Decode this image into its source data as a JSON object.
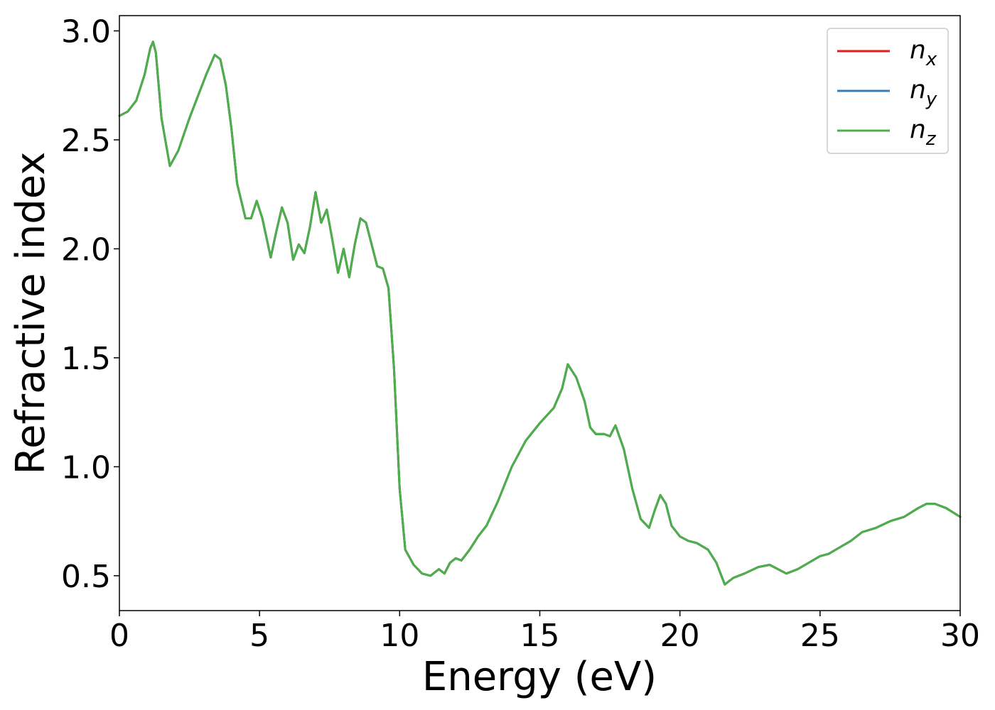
{
  "chart_data": {
    "type": "line",
    "title": "",
    "xlabel": "Energy (eV)",
    "ylabel": "Refractive index",
    "xlim": [
      0,
      30
    ],
    "ylim": [
      0.34,
      3.07
    ],
    "xticks": [
      0,
      5,
      10,
      15,
      20,
      25,
      30
    ],
    "xtick_labels": [
      "0",
      "5",
      "10",
      "15",
      "20",
      "25",
      "30"
    ],
    "yticks": [
      0.5,
      1.0,
      1.5,
      2.0,
      2.5,
      3.0
    ],
    "ytick_labels": [
      "0.5",
      "1.0",
      "1.5",
      "2.0",
      "2.5",
      "3.0"
    ],
    "grid": false,
    "legend": {
      "placement": "top-right"
    },
    "colors": {
      "nx": "#e41a1c",
      "ny": "#377eb8",
      "nz": "#4daf4a"
    },
    "x": [
      0,
      0.3,
      0.6,
      0.9,
      1.1,
      1.2,
      1.3,
      1.5,
      1.8,
      2.1,
      2.5,
      2.8,
      3.1,
      3.4,
      3.6,
      3.8,
      4.0,
      4.2,
      4.5,
      4.7,
      4.9,
      5.1,
      5.4,
      5.6,
      5.8,
      6.0,
      6.2,
      6.4,
      6.6,
      6.8,
      7.0,
      7.2,
      7.4,
      7.6,
      7.8,
      8.0,
      8.2,
      8.4,
      8.6,
      8.8,
      9.0,
      9.2,
      9.4,
      9.6,
      9.8,
      10.0,
      10.2,
      10.5,
      10.8,
      11.1,
      11.4,
      11.6,
      11.8,
      12.0,
      12.2,
      12.5,
      12.8,
      13.1,
      13.5,
      14.0,
      14.5,
      15.0,
      15.5,
      15.8,
      16.0,
      16.3,
      16.6,
      16.8,
      17.0,
      17.3,
      17.5,
      17.7,
      18.0,
      18.3,
      18.6,
      18.9,
      19.1,
      19.3,
      19.5,
      19.7,
      20.0,
      20.3,
      20.6,
      21.0,
      21.3,
      21.6,
      21.9,
      22.3,
      22.8,
      23.2,
      23.5,
      23.8,
      24.2,
      24.6,
      25.0,
      25.3,
      25.7,
      26.1,
      26.5,
      27.0,
      27.5,
      28.0,
      28.5,
      28.8,
      29.1,
      29.5,
      30.0
    ],
    "series": [
      {
        "name": "n_x",
        "label_base": "n",
        "label_sub": "x",
        "color": "#e41a1c",
        "values": [
          2.61,
          2.63,
          2.68,
          2.8,
          2.92,
          2.95,
          2.9,
          2.6,
          2.38,
          2.45,
          2.6,
          2.7,
          2.8,
          2.89,
          2.87,
          2.75,
          2.55,
          2.3,
          2.14,
          2.14,
          2.22,
          2.14,
          1.96,
          2.08,
          2.19,
          2.12,
          1.95,
          2.02,
          1.98,
          2.1,
          2.26,
          2.12,
          2.18,
          2.04,
          1.89,
          2.0,
          1.87,
          2.02,
          2.14,
          2.12,
          2.02,
          1.92,
          1.91,
          1.82,
          1.45,
          0.9,
          0.62,
          0.55,
          0.51,
          0.5,
          0.53,
          0.51,
          0.56,
          0.58,
          0.57,
          0.62,
          0.68,
          0.73,
          0.84,
          1.0,
          1.12,
          1.2,
          1.27,
          1.36,
          1.47,
          1.41,
          1.3,
          1.18,
          1.15,
          1.15,
          1.14,
          1.19,
          1.08,
          0.9,
          0.76,
          0.72,
          0.8,
          0.87,
          0.83,
          0.73,
          0.68,
          0.66,
          0.65,
          0.62,
          0.56,
          0.46,
          0.49,
          0.51,
          0.54,
          0.55,
          0.53,
          0.51,
          0.53,
          0.56,
          0.59,
          0.6,
          0.63,
          0.66,
          0.7,
          0.72,
          0.75,
          0.77,
          0.81,
          0.83,
          0.83,
          0.81,
          0.77
        ]
      },
      {
        "name": "n_y",
        "label_base": "n",
        "label_sub": "y",
        "color": "#377eb8",
        "values": [
          2.61,
          2.63,
          2.68,
          2.8,
          2.92,
          2.95,
          2.9,
          2.6,
          2.38,
          2.45,
          2.6,
          2.7,
          2.8,
          2.89,
          2.87,
          2.75,
          2.55,
          2.3,
          2.14,
          2.14,
          2.22,
          2.14,
          1.96,
          2.08,
          2.19,
          2.12,
          1.95,
          2.02,
          1.98,
          2.1,
          2.26,
          2.12,
          2.18,
          2.04,
          1.89,
          2.0,
          1.87,
          2.02,
          2.14,
          2.12,
          2.02,
          1.92,
          1.91,
          1.82,
          1.45,
          0.9,
          0.62,
          0.55,
          0.51,
          0.5,
          0.53,
          0.51,
          0.56,
          0.58,
          0.57,
          0.62,
          0.68,
          0.73,
          0.84,
          1.0,
          1.12,
          1.2,
          1.27,
          1.36,
          1.47,
          1.41,
          1.3,
          1.18,
          1.15,
          1.15,
          1.14,
          1.19,
          1.08,
          0.9,
          0.76,
          0.72,
          0.8,
          0.87,
          0.83,
          0.73,
          0.68,
          0.66,
          0.65,
          0.62,
          0.56,
          0.46,
          0.49,
          0.51,
          0.54,
          0.55,
          0.53,
          0.51,
          0.53,
          0.56,
          0.59,
          0.6,
          0.63,
          0.66,
          0.7,
          0.72,
          0.75,
          0.77,
          0.81,
          0.83,
          0.83,
          0.81,
          0.77
        ]
      },
      {
        "name": "n_z",
        "label_base": "n",
        "label_sub": "z",
        "color": "#4daf4a",
        "values": [
          2.61,
          2.63,
          2.68,
          2.8,
          2.92,
          2.95,
          2.9,
          2.6,
          2.38,
          2.45,
          2.6,
          2.7,
          2.8,
          2.89,
          2.87,
          2.75,
          2.55,
          2.3,
          2.14,
          2.14,
          2.22,
          2.14,
          1.96,
          2.08,
          2.19,
          2.12,
          1.95,
          2.02,
          1.98,
          2.1,
          2.26,
          2.12,
          2.18,
          2.04,
          1.89,
          2.0,
          1.87,
          2.02,
          2.14,
          2.12,
          2.02,
          1.92,
          1.91,
          1.82,
          1.45,
          0.9,
          0.62,
          0.55,
          0.51,
          0.5,
          0.53,
          0.51,
          0.56,
          0.58,
          0.57,
          0.62,
          0.68,
          0.73,
          0.84,
          1.0,
          1.12,
          1.2,
          1.27,
          1.36,
          1.47,
          1.41,
          1.3,
          1.18,
          1.15,
          1.15,
          1.14,
          1.19,
          1.08,
          0.9,
          0.76,
          0.72,
          0.8,
          0.87,
          0.83,
          0.73,
          0.68,
          0.66,
          0.65,
          0.62,
          0.56,
          0.46,
          0.49,
          0.51,
          0.54,
          0.55,
          0.53,
          0.51,
          0.53,
          0.56,
          0.59,
          0.6,
          0.63,
          0.66,
          0.7,
          0.72,
          0.75,
          0.77,
          0.81,
          0.83,
          0.83,
          0.81,
          0.77
        ]
      }
    ]
  }
}
